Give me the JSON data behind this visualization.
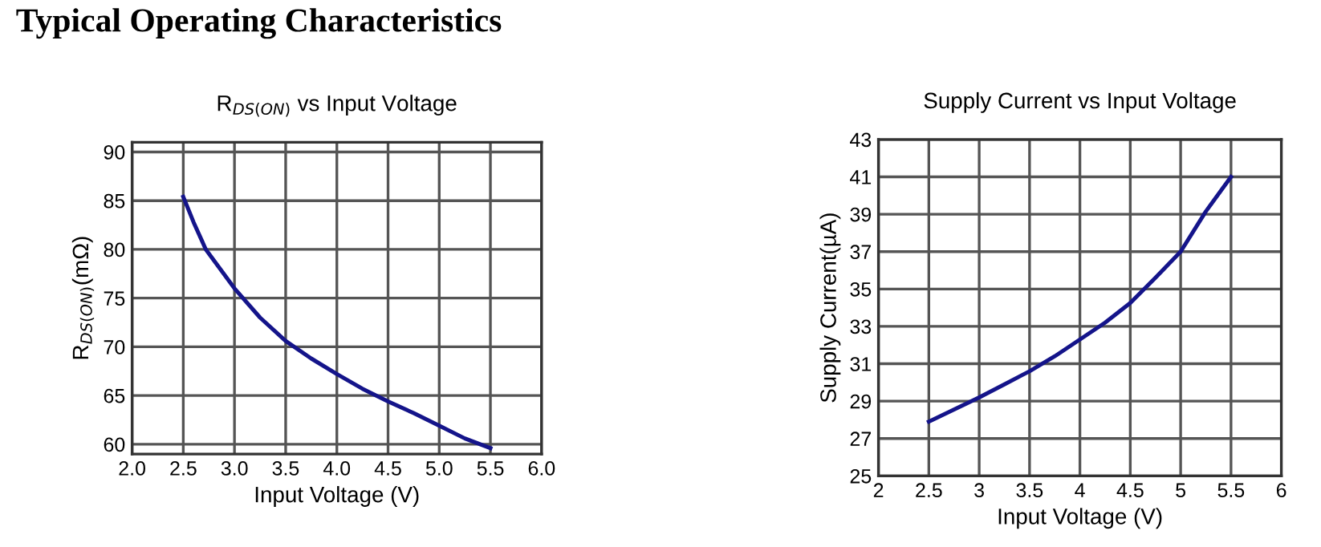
{
  "chart_data": [
    {
      "type": "line",
      "title": "R$_{DS(ON)}$ vs Input Voltage",
      "xlabel": "Input Voltage (V)",
      "ylabel": "R$_{DS(ON)}$(mΩ)",
      "annotations": [
        "Typical Operating Characteristics"
      ],
      "series": [
        {
          "color": "#14148a",
          "x": [
            2.5,
            2.6,
            2.72,
            3.0,
            3.25,
            3.5,
            3.75,
            4.0,
            4.25,
            4.5,
            4.75,
            5.0,
            5.25,
            5.5
          ],
          "values": [
            85.4,
            82.8,
            80,
            76,
            73,
            70.6,
            68.8,
            67.2,
            65.7,
            64.4,
            63.2,
            61.9,
            60.6,
            59.6
          ]
        }
      ],
      "xlim": [
        2,
        6
      ],
      "ylim": [
        59,
        91
      ],
      "xticks": [
        {
          "value": 2,
          "label": "2.0"
        },
        2.5,
        {
          "value": 3,
          "label": "3.0"
        },
        3.5,
        {
          "value": 4,
          "label": "4.0"
        },
        4.5,
        {
          "value": 5,
          "label": "5.0"
        },
        5.5,
        {
          "value": 6,
          "label": "6.0"
        }
      ],
      "yticks": [
        60,
        65,
        70,
        75,
        80,
        85,
        90
      ],
      "grid": true,
      "marker": "none",
      "line_style": "solid"
    },
    {
      "type": "line",
      "title": "Supply Current vs Input Voltage",
      "xlabel": "Input Voltage (V)",
      "ylabel": "Supply Current(µA)",
      "series": [
        {
          "color": "#14148a",
          "x": [
            2.5,
            3.0,
            3.25,
            3.5,
            3.75,
            4.0,
            4.25,
            4.5,
            4.75,
            5.0,
            5.25,
            5.5
          ],
          "values": [
            27.9,
            29.2,
            29.9,
            30.6,
            31.4,
            32.3,
            33.2,
            34.25,
            35.6,
            37.0,
            39.15,
            41
          ]
        }
      ],
      "xlim": [
        2,
        6
      ],
      "ylim": [
        25,
        43
      ],
      "xticks": [
        2,
        2.5,
        3,
        3.5,
        4,
        4.5,
        5,
        5.5,
        6
      ],
      "yticks": [
        25,
        27,
        29,
        31,
        33,
        35,
        37,
        39,
        41,
        43
      ],
      "grid": true,
      "marker": "none",
      "line_style": "solid"
    }
  ]
}
